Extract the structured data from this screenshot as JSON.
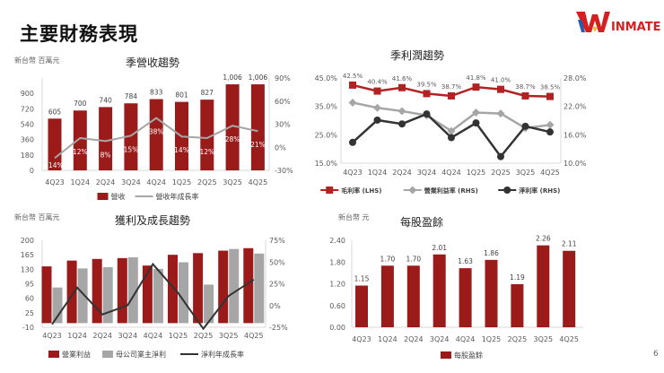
{
  "page": {
    "title": "主要財務表現",
    "page_number": "6",
    "logo_text": "WINMATE"
  },
  "colors": {
    "red": "#9b1b1b",
    "gray": "#a6a6a6",
    "dark": "#333333",
    "line_red": "#b22222"
  },
  "chart_data": [
    {
      "type": "bar+line",
      "title": "季營收趨勢",
      "unit_label": "新台幣 百萬元",
      "categories": [
        "4Q23",
        "1Q24",
        "2Q24",
        "3Q24",
        "4Q24",
        "1Q25",
        "2Q25",
        "3Q25",
        "4Q25"
      ],
      "series": [
        {
          "name": "營收",
          "type": "bar",
          "axis": "left",
          "values": [
            605,
            700,
            740,
            784,
            833,
            801,
            827,
            1006,
            1006
          ],
          "labels": [
            "605",
            "700",
            "740",
            "784",
            "833",
            "801",
            "827",
            "1,006",
            "1,006"
          ]
        },
        {
          "name": "營收年成長率",
          "type": "line",
          "axis": "right",
          "values": [
            -14,
            12,
            8,
            15,
            38,
            14,
            12,
            28,
            21
          ],
          "labels": [
            "-14%",
            "12%",
            "8%",
            "15%",
            "38%",
            "14%",
            "12%",
            "28%",
            "21%"
          ]
        }
      ],
      "ylim_left": [
        0,
        1080
      ],
      "yticks_left": [
        "0",
        "180",
        "360",
        "540",
        "720",
        "900"
      ],
      "ylim_right": [
        -30,
        90
      ],
      "yticks_right": [
        "-30%",
        "0%",
        "30%",
        "60%",
        "90%"
      ],
      "legend": "bottom"
    },
    {
      "type": "line",
      "title": "季利潤趨勢",
      "categories": [
        "4Q23",
        "1Q24",
        "2Q24",
        "3Q24",
        "4Q24",
        "1Q25",
        "2Q25",
        "3Q25",
        "4Q25"
      ],
      "series": [
        {
          "name": "毛利率 (LHS)",
          "axis": "left",
          "values": [
            42.5,
            40.4,
            41.6,
            39.5,
            38.7,
            41.8,
            41.0,
            38.7,
            38.5
          ],
          "labels": [
            "42.5%",
            "40.4%",
            "41.6%",
            "39.5%",
            "38.7%",
            "41.8%",
            "41.0%",
            "38.7%",
            "38.5%"
          ]
        },
        {
          "name": "營業利益率 (RHS)",
          "axis": "right",
          "values": [
            22.8,
            21.7,
            21.0,
            20.1,
            16.8,
            20.7,
            20.5,
            17.4,
            18.1
          ]
        },
        {
          "name": "淨利率 (RHS)",
          "axis": "right",
          "values": [
            14.4,
            19.1,
            18.3,
            20.4,
            15.4,
            18.5,
            11.4,
            17.8,
            16.6
          ]
        }
      ],
      "ylim_left": [
        15,
        45
      ],
      "yticks_left": [
        "15.0%",
        "25.0%",
        "35.0%",
        "45.0%"
      ],
      "ylim_right": [
        10,
        28
      ],
      "yticks_right": [
        "10.0%",
        "16.0%",
        "22.0%",
        "28.0%"
      ],
      "legend": "bottom"
    },
    {
      "type": "bar+line",
      "title": "獲利及成長趨勢",
      "unit_label": "新台幣 百萬元",
      "categories": [
        "4Q23",
        "1Q24",
        "2Q24",
        "3Q24",
        "4Q24",
        "1Q25",
        "2Q25",
        "3Q25",
        "4Q25"
      ],
      "series": [
        {
          "name": "營業利益",
          "type": "bar",
          "axis": "left",
          "values": [
            137,
            151,
            155,
            157,
            139,
            165,
            169,
            175,
            181
          ]
        },
        {
          "name": "母公司業主淨利",
          "type": "bar",
          "axis": "left",
          "values": [
            86,
            132,
            135,
            159,
            131,
            147,
            93,
            179,
            168
          ]
        },
        {
          "name": "淨利年成長率",
          "type": "line",
          "axis": "right",
          "values": [
            -21.6,
            20.5,
            -10.3,
            0.3,
            47.6,
            14.4,
            -26.7,
            11,
            29.8
          ]
        }
      ],
      "ylim_left": [
        -10,
        200
      ],
      "yticks_left": [
        "-10",
        "25",
        "60",
        "95",
        "130",
        "165",
        "200"
      ],
      "ylim_right": [
        -25,
        75
      ],
      "yticks_right": [
        "-25%",
        "0%",
        "25%",
        "50%",
        "75%"
      ],
      "legend": "bottom"
    },
    {
      "type": "bar",
      "title": "每股盈餘",
      "unit_label": "新台幣 元",
      "categories": [
        "4Q23",
        "1Q24",
        "2Q24",
        "3Q24",
        "4Q24",
        "1Q25",
        "2Q25",
        "3Q25",
        "4Q25"
      ],
      "series": [
        {
          "name": "每股盈餘",
          "type": "bar",
          "axis": "left",
          "values": [
            1.15,
            1.7,
            1.7,
            2.01,
            1.63,
            1.86,
            1.19,
            2.26,
            2.11
          ],
          "labels": [
            "1.15",
            "1.70",
            "1.70",
            "2.01",
            "1.63",
            "1.86",
            "1.19",
            "2.26",
            "2.11"
          ]
        }
      ],
      "ylim_left": [
        0,
        2.4
      ],
      "yticks_left": [
        "0.00",
        "0.60",
        "1.20",
        "1.80",
        "2.40"
      ],
      "legend": "bottom"
    }
  ]
}
